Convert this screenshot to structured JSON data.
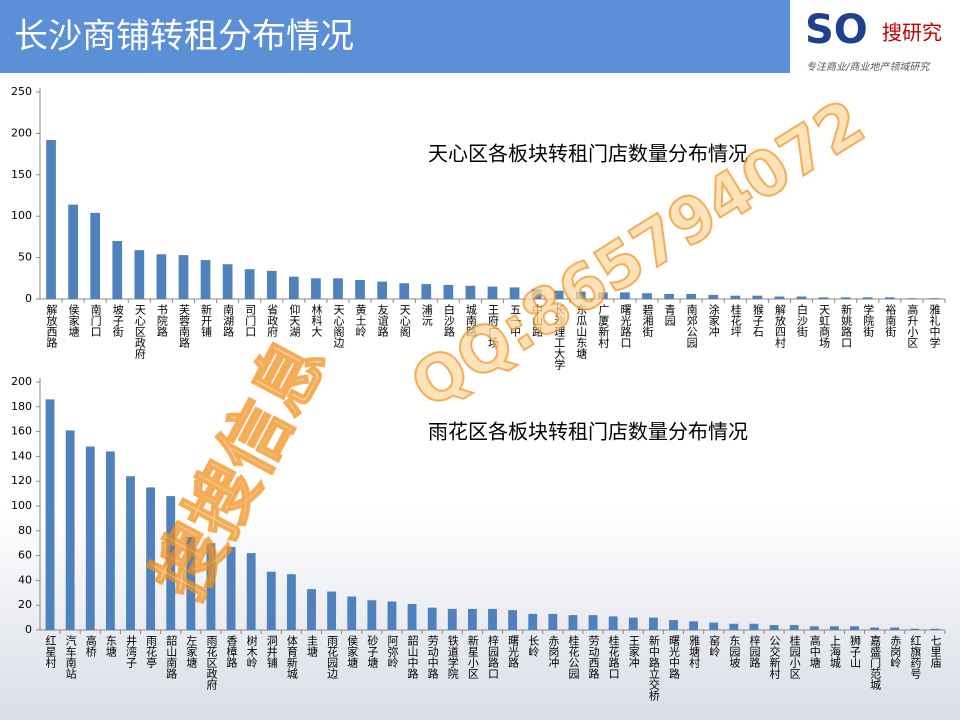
{
  "title": "长沙商铺转租分布情况",
  "logo": {
    "mark": "搜研究",
    "tagline": "专注商业/商业地产领域研究"
  },
  "watermark": {
    "name": "搜搜信息",
    "contact": "QQ:865794072"
  },
  "chart_data": [
    {
      "type": "bar",
      "title": "天心区各板块转租门店数量分布情况",
      "color": "#4f81bd",
      "categories": [
        "解放西路",
        "侯家塘",
        "南门口",
        "坡子街",
        "天心区政府",
        "书院路",
        "芙蓉南路",
        "新开铺",
        "南湖路",
        "司门口",
        "省政府",
        "仰天湖",
        "林科大",
        "天心阁边",
        "黄土岭",
        "友谊路",
        "天心阁",
        "浦沅",
        "白沙路",
        "城南路",
        "王府广场",
        "五一中",
        "中山路",
        "长沙理工大学",
        "东瓜山东塘",
        "广厦新村",
        "曙光路口",
        "碧湘街",
        "青园",
        "南郊公园",
        "涂家冲",
        "桂花坪",
        "猴子石",
        "解放四村",
        "白沙街",
        "天虹商场",
        "新姚路口",
        "学院街",
        "裕南街",
        "高升小区",
        "雅礼中学"
      ],
      "values": [
        192,
        114,
        104,
        70,
        59,
        54,
        53,
        47,
        42,
        36,
        34,
        27,
        25,
        25,
        23,
        21,
        19,
        18,
        17,
        16,
        15,
        14,
        12,
        10,
        9,
        8,
        8,
        7,
        6,
        6,
        5,
        4,
        4,
        3,
        3,
        2,
        2,
        2,
        2,
        1,
        1
      ],
      "ylim": [
        0,
        250
      ],
      "yticks": [
        0,
        50,
        100,
        150,
        200,
        250
      ]
    },
    {
      "type": "bar",
      "title": "雨花区各板块转租门店数量分布情况",
      "color": "#4f81bd",
      "categories": [
        "红星村",
        "汽车南站",
        "高桥",
        "东塘",
        "井湾子",
        "雨花亭",
        "韶山南路",
        "左家塘",
        "雨花区政府",
        "香樟路",
        "树木岭",
        "洞井铺",
        "体育新城",
        "圭塘",
        "雨花园边",
        "侯家塘",
        "砂子塘",
        "阿弥岭",
        "韶山中路",
        "劳动中路",
        "铁道学院",
        "新星小区",
        "梓园路口",
        "曙光路",
        "长岭",
        "赤岗冲",
        "桂花公园",
        "劳动西路",
        "桂花路口",
        "王家冲",
        "新中路立交桥",
        "曙光中路",
        "雅塘村",
        "窑岭",
        "东园坡",
        "梓园路",
        "公交新村",
        "桂园小区",
        "高中塘",
        "上海城",
        "狮子山",
        "嘉盛门范城",
        "赤岗岭",
        "红旗药号",
        "七里庙"
      ],
      "values": [
        186,
        161,
        148,
        144,
        124,
        115,
        108,
        75,
        70,
        67,
        62,
        47,
        45,
        33,
        31,
        27,
        24,
        23,
        21,
        18,
        17,
        17,
        17,
        16,
        13,
        13,
        12,
        12,
        11,
        10,
        10,
        8,
        7,
        6,
        5,
        5,
        4,
        4,
        3,
        3,
        3,
        2,
        2,
        1,
        1
      ],
      "ylim": [
        0,
        200
      ],
      "yticks": [
        0,
        20,
        40,
        60,
        80,
        100,
        120,
        140,
        160,
        180,
        200
      ]
    }
  ]
}
